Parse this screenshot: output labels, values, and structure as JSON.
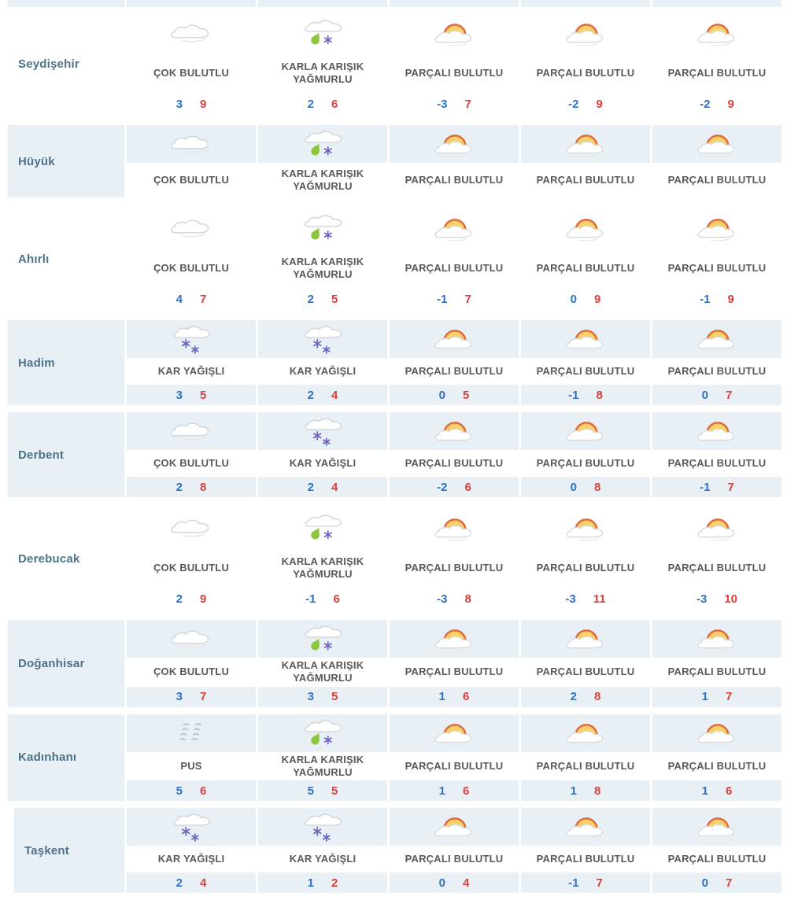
{
  "colors": {
    "row_alt_background": "#e9f0f5",
    "city_text": "#4c7389",
    "condition_text": "#58595b",
    "min_temp_text": "#2e71c5",
    "max_temp_text": "#d6413d",
    "sun_fill": "#f8d269",
    "sun_stroke": "#e06a3b",
    "rain_drop": "#8cc63e",
    "snowflake": "#6f65bd",
    "cloud_outline": "#cfd5d9",
    "haze_stroke": "#b6bcc1"
  },
  "table": {
    "rows": [
      {
        "city": "Seydişehir",
        "variant": "white",
        "show_temps": true,
        "cells": [
          {
            "icon": "cloudy-icon",
            "label": "ÇOK BULUTLU",
            "min": "3",
            "max": "9"
          },
          {
            "icon": "sleet-icon",
            "label": "KARLA KARIŞIK YAĞMURLU",
            "min": "2",
            "max": "6"
          },
          {
            "icon": "partly-cloudy-icon",
            "label": "PARÇALI BULUTLU",
            "min": "-3",
            "max": "7"
          },
          {
            "icon": "partly-cloudy-icon",
            "label": "PARÇALI BULUTLU",
            "min": "-2",
            "max": "9"
          },
          {
            "icon": "partly-cloudy-icon",
            "label": "PARÇALI BULUTLU",
            "min": "-2",
            "max": "9"
          }
        ]
      },
      {
        "city": "Hüyük",
        "variant": "blue",
        "show_temps": false,
        "cells": [
          {
            "icon": "cloudy-icon",
            "label": "ÇOK BULUTLU"
          },
          {
            "icon": "sleet-icon",
            "label": "KARLA KARIŞIK YAĞMURLU"
          },
          {
            "icon": "partly-cloudy-icon",
            "label": "PARÇALI BULUTLU"
          },
          {
            "icon": "partly-cloudy-icon",
            "label": "PARÇALI BULUTLU"
          },
          {
            "icon": "partly-cloudy-icon",
            "label": "PARÇALI BULUTLU"
          }
        ]
      },
      {
        "city": "Ahırlı",
        "variant": "white",
        "show_temps": true,
        "cells": [
          {
            "icon": "cloudy-icon",
            "label": "ÇOK BULUTLU",
            "min": "4",
            "max": "7"
          },
          {
            "icon": "sleet-icon",
            "label": "KARLA KARIŞIK YAĞMURLU",
            "min": "2",
            "max": "5"
          },
          {
            "icon": "partly-cloudy-icon",
            "label": "PARÇALI BULUTLU",
            "min": "-1",
            "max": "7"
          },
          {
            "icon": "partly-cloudy-icon",
            "label": "PARÇALI BULUTLU",
            "min": "0",
            "max": "9"
          },
          {
            "icon": "partly-cloudy-icon",
            "label": "PARÇALI BULUTLU",
            "min": "-1",
            "max": "9"
          }
        ]
      },
      {
        "city": "Hadim",
        "variant": "blue",
        "show_temps": true,
        "cells": [
          {
            "icon": "snow-icon",
            "label": "KAR YAĞIŞLI",
            "min": "3",
            "max": "5"
          },
          {
            "icon": "snow-icon",
            "label": "KAR YAĞIŞLI",
            "min": "2",
            "max": "4"
          },
          {
            "icon": "partly-cloudy-icon",
            "label": "PARÇALI BULUTLU",
            "min": "0",
            "max": "5"
          },
          {
            "icon": "partly-cloudy-icon",
            "label": "PARÇALI BULUTLU",
            "min": "-1",
            "max": "8"
          },
          {
            "icon": "partly-cloudy-icon",
            "label": "PARÇALI BULUTLU",
            "min": "0",
            "max": "7"
          }
        ]
      },
      {
        "city": "Derbent",
        "variant": "blue",
        "show_temps": true,
        "cells": [
          {
            "icon": "cloudy-icon",
            "label": "ÇOK BULUTLU",
            "min": "2",
            "max": "8"
          },
          {
            "icon": "snow-icon",
            "label": "KAR YAĞIŞLI",
            "min": "2",
            "max": "4"
          },
          {
            "icon": "partly-cloudy-icon",
            "label": "PARÇALI BULUTLU",
            "min": "-2",
            "max": "6"
          },
          {
            "icon": "partly-cloudy-icon",
            "label": "PARÇALI BULUTLU",
            "min": "0",
            "max": "8"
          },
          {
            "icon": "partly-cloudy-icon",
            "label": "PARÇALI BULUTLU",
            "min": "-1",
            "max": "7"
          }
        ]
      },
      {
        "city": "Derebucak",
        "variant": "white",
        "show_temps": true,
        "cells": [
          {
            "icon": "cloudy-icon",
            "label": "ÇOK BULUTLU",
            "min": "2",
            "max": "9"
          },
          {
            "icon": "sleet-icon",
            "label": "KARLA KARIŞIK YAĞMURLU",
            "min": "-1",
            "max": "6"
          },
          {
            "icon": "partly-cloudy-icon",
            "label": "PARÇALI BULUTLU",
            "min": "-3",
            "max": "8"
          },
          {
            "icon": "partly-cloudy-icon",
            "label": "PARÇALI BULUTLU",
            "min": "-3",
            "max": "11"
          },
          {
            "icon": "partly-cloudy-icon",
            "label": "PARÇALI BULUTLU",
            "min": "-3",
            "max": "10"
          }
        ]
      },
      {
        "city": "Doğanhisar",
        "variant": "blue",
        "show_temps": true,
        "cells": [
          {
            "icon": "cloudy-icon",
            "label": "ÇOK BULUTLU",
            "min": "3",
            "max": "7"
          },
          {
            "icon": "sleet-icon",
            "label": "KARLA KARIŞIK YAĞMURLU",
            "min": "3",
            "max": "5"
          },
          {
            "icon": "partly-cloudy-icon",
            "label": "PARÇALI BULUTLU",
            "min": "1",
            "max": "6"
          },
          {
            "icon": "partly-cloudy-icon",
            "label": "PARÇALI BULUTLU",
            "min": "2",
            "max": "8"
          },
          {
            "icon": "partly-cloudy-icon",
            "label": "PARÇALI BULUTLU",
            "min": "1",
            "max": "7"
          }
        ]
      },
      {
        "city": "Kadınhanı",
        "variant": "blue",
        "show_temps": true,
        "cells": [
          {
            "icon": "haze-icon",
            "label": "PUS",
            "min": "5",
            "max": "6"
          },
          {
            "icon": "sleet-icon",
            "label": "KARLA KARIŞIK YAĞMURLU",
            "min": "5",
            "max": "5"
          },
          {
            "icon": "partly-cloudy-icon",
            "label": "PARÇALI BULUTLU",
            "min": "1",
            "max": "6"
          },
          {
            "icon": "partly-cloudy-icon",
            "label": "PARÇALI BULUTLU",
            "min": "1",
            "max": "8"
          },
          {
            "icon": "partly-cloudy-icon",
            "label": "PARÇALI BULUTLU",
            "min": "1",
            "max": "6"
          }
        ]
      },
      {
        "city": "Taşkent",
        "variant": "blue",
        "show_temps": true,
        "indent": true,
        "cells": [
          {
            "icon": "snow-icon",
            "label": "KAR YAĞIŞLI",
            "min": "2",
            "max": "4"
          },
          {
            "icon": "snow-icon",
            "label": "KAR YAĞIŞLI",
            "min": "1",
            "max": "2"
          },
          {
            "icon": "partly-cloudy-icon",
            "label": "PARÇALI BULUTLU",
            "min": "0",
            "max": "4"
          },
          {
            "icon": "partly-cloudy-icon",
            "label": "PARÇALI BULUTLU",
            "min": "-1",
            "max": "7"
          },
          {
            "icon": "partly-cloudy-icon",
            "label": "PARÇALI BULUTLU",
            "min": "0",
            "max": "7"
          }
        ]
      }
    ]
  }
}
